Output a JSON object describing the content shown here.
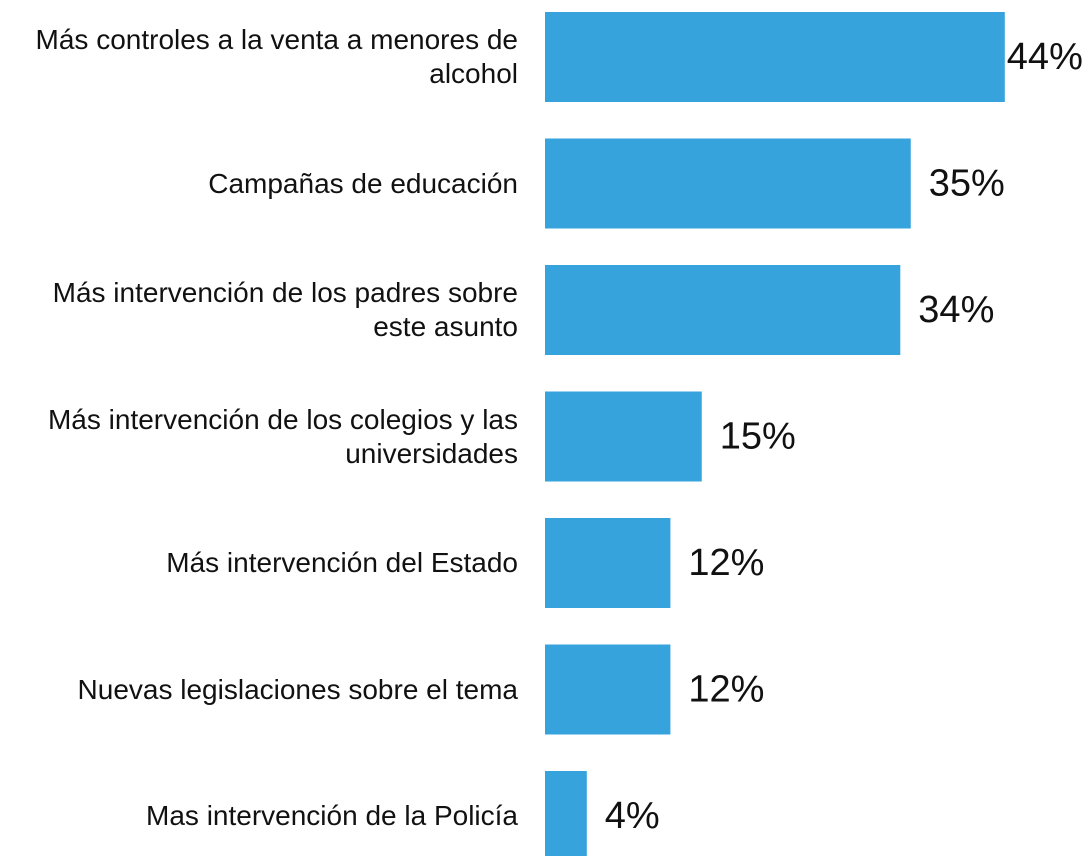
{
  "chart_data": {
    "type": "bar",
    "orientation": "horizontal",
    "categories": [
      "Más controles a la venta a menores de alcohol",
      "Campañas de educación",
      "Más intervención de los padres sobre este asunto",
      "Más intervención de los colegios y las universidades",
      "Más intervención del Estado",
      "Nuevas legislaciones sobre el tema",
      "Mas intervención de la Policía"
    ],
    "values": [
      44,
      35,
      34,
      15,
      12,
      12,
      4
    ],
    "value_labels": [
      "44%",
      "35%",
      "34%",
      "15%",
      "12%",
      "12%",
      "4%"
    ],
    "color": "#36a3dc"
  }
}
